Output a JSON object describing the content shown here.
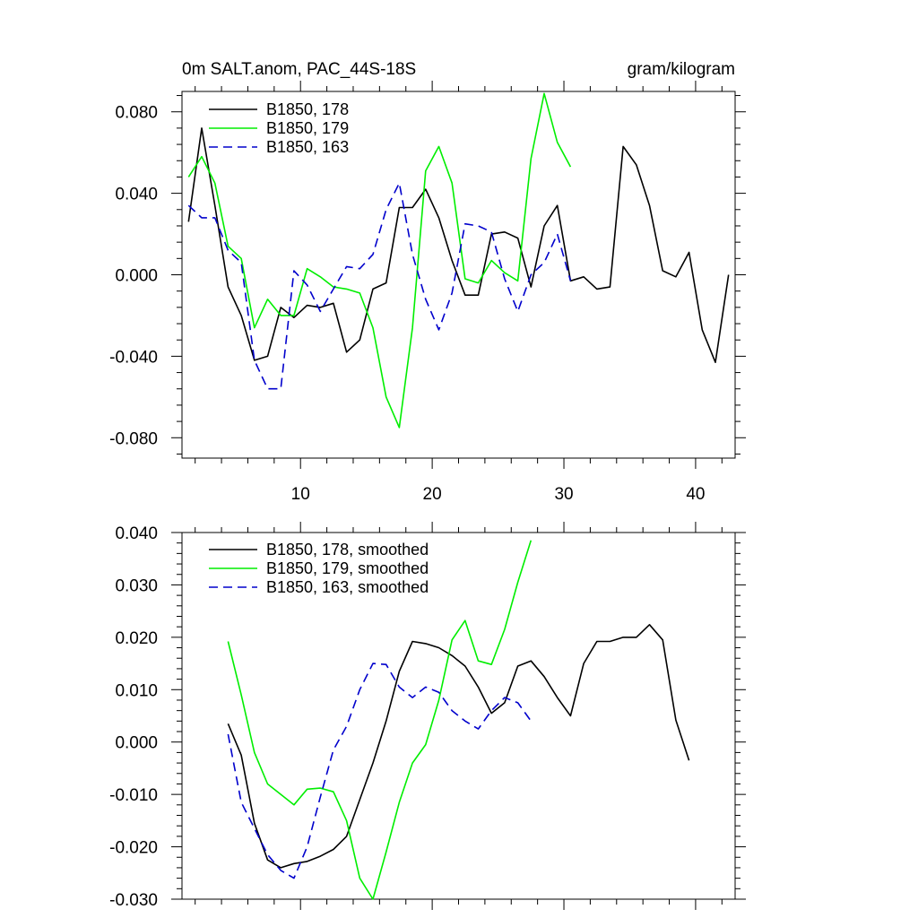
{
  "chart_data": [
    {
      "type": "line",
      "title_left": "0m SALT.anom, PAC_44S-18S",
      "title_right": "gram/kilogram",
      "xlim": [
        1.0,
        43.0
      ],
      "ylim": [
        -0.09,
        0.09
      ],
      "yticks": [
        -0.08,
        -0.04,
        0.0,
        0.04,
        0.08
      ],
      "ytick_labels": [
        "-0.080",
        "-0.040",
        "0.000",
        "0.040",
        "0.080"
      ],
      "xticks": [
        10,
        20,
        30,
        40
      ],
      "xtick_labels": [
        "10",
        "20",
        "30",
        "40"
      ],
      "legend_position": "top-left",
      "series": [
        {
          "name": "B1850, 178",
          "color": "#000000",
          "dash": "solid",
          "x": [
            1.5,
            2.5,
            3.5,
            4.5,
            5.5,
            6.5,
            7.5,
            8.5,
            9.5,
            10.5,
            11.5,
            12.5,
            13.5,
            14.5,
            15.5,
            16.5,
            17.5,
            18.5,
            19.5,
            20.5,
            21.5,
            22.5,
            23.5,
            24.5,
            25.5,
            26.5,
            27.5,
            28.5,
            29.5,
            30.5,
            31.5,
            32.5,
            33.5,
            34.5,
            35.5,
            36.5,
            37.5,
            38.5,
            39.5,
            40.5,
            41.5,
            42.5
          ],
          "values": [
            0.026,
            0.072,
            0.034,
            -0.006,
            -0.02,
            -0.042,
            -0.04,
            -0.016,
            -0.021,
            -0.015,
            -0.016,
            -0.014,
            -0.038,
            -0.032,
            -0.007,
            -0.004,
            0.033,
            0.033,
            0.042,
            0.028,
            0.007,
            -0.01,
            -0.01,
            0.02,
            0.021,
            0.018,
            -0.006,
            0.024,
            0.034,
            -0.003,
            -0.001,
            -0.007,
            -0.006,
            0.063,
            0.054,
            0.034,
            0.002,
            -0.001,
            0.011,
            -0.027,
            -0.043,
            0.0
          ]
        },
        {
          "name": "B1850, 179",
          "color": "#00ee00",
          "dash": "solid",
          "x": [
            1.5,
            2.5,
            3.5,
            4.5,
            5.5,
            6.5,
            7.5,
            8.5,
            9.5,
            10.5,
            11.5,
            12.5,
            13.5,
            14.5,
            15.5,
            16.5,
            17.5,
            18.5,
            19.5,
            20.5,
            21.5,
            22.5,
            23.5,
            24.5,
            25.5,
            26.5,
            27.5,
            28.5,
            29.5,
            30.5
          ],
          "values": [
            0.048,
            0.058,
            0.045,
            0.014,
            0.008,
            -0.026,
            -0.012,
            -0.02,
            -0.02,
            0.003,
            -0.001,
            -0.006,
            -0.007,
            -0.009,
            -0.026,
            -0.06,
            -0.075,
            -0.026,
            0.051,
            0.063,
            0.045,
            -0.002,
            -0.004,
            0.007,
            0.001,
            -0.003,
            0.057,
            0.089,
            0.065,
            0.053
          ]
        },
        {
          "name": "B1850, 163",
          "color": "#0000cc",
          "dash": "dashed",
          "x": [
            1.5,
            2.5,
            3.5,
            4.5,
            5.5,
            6.5,
            7.5,
            8.5,
            9.5,
            10.5,
            11.5,
            12.5,
            13.5,
            14.5,
            15.5,
            16.5,
            17.5,
            18.5,
            19.5,
            20.5,
            21.5,
            22.5,
            23.5,
            24.5,
            25.5,
            26.5,
            27.5,
            28.5,
            29.5,
            30.5
          ],
          "values": [
            0.034,
            0.028,
            0.028,
            0.012,
            0.006,
            -0.042,
            -0.056,
            -0.056,
            0.002,
            -0.005,
            -0.018,
            -0.007,
            0.004,
            0.003,
            0.01,
            0.032,
            0.045,
            0.01,
            -0.012,
            -0.027,
            -0.009,
            0.025,
            0.024,
            0.021,
            -0.002,
            -0.018,
            0.0,
            0.006,
            0.02,
            -0.003
          ]
        }
      ]
    },
    {
      "type": "line",
      "xlim": [
        1.0,
        43.0
      ],
      "ylim": [
        -0.03,
        0.04
      ],
      "yticks": [
        -0.03,
        -0.02,
        -0.01,
        0.0,
        0.01,
        0.02,
        0.03,
        0.04
      ],
      "ytick_labels": [
        "-0.030",
        "-0.020",
        "-0.010",
        "0.000",
        "0.010",
        "0.020",
        "0.030",
        "0.040"
      ],
      "xticks": [
        10,
        20,
        30,
        40
      ],
      "legend_position": "top-left",
      "series": [
        {
          "name": "B1850, 178, smoothed",
          "color": "#000000",
          "dash": "solid",
          "x": [
            4.5,
            5.5,
            6.5,
            7.5,
            8.5,
            9.5,
            10.5,
            11.5,
            12.5,
            13.5,
            14.5,
            15.5,
            16.5,
            17.5,
            18.5,
            19.5,
            20.5,
            21.5,
            22.5,
            23.5,
            24.5,
            25.5,
            26.5,
            27.5,
            28.5,
            29.5,
            30.5,
            31.5,
            32.5,
            33.5,
            34.5,
            35.5,
            36.5,
            37.5,
            38.5,
            39.5
          ],
          "values": [
            0.0035,
            -0.0025,
            -0.0155,
            -0.0225,
            -0.024,
            -0.0232,
            -0.0228,
            -0.0218,
            -0.0205,
            -0.018,
            -0.011,
            -0.004,
            0.004,
            0.0135,
            0.0192,
            0.0188,
            0.018,
            0.0165,
            0.0145,
            0.0105,
            0.0055,
            0.0075,
            0.0145,
            0.0155,
            0.0125,
            0.0085,
            0.005,
            0.015,
            0.0192,
            0.0192,
            0.02,
            0.02,
            0.0224,
            0.0195,
            0.0042,
            -0.0035
          ]
        },
        {
          "name": "B1850, 179, smoothed",
          "color": "#00ee00",
          "dash": "solid",
          "x": [
            4.5,
            5.5,
            6.5,
            7.5,
            8.5,
            9.5,
            10.5,
            11.5,
            12.5,
            13.5,
            14.5,
            15.5,
            16.5,
            17.5,
            18.5,
            19.5,
            20.5,
            21.5,
            22.5,
            23.5,
            24.5,
            25.5,
            26.5,
            27.5
          ],
          "values": [
            0.0192,
            0.009,
            -0.002,
            -0.008,
            -0.01,
            -0.012,
            -0.009,
            -0.0088,
            -0.0095,
            -0.015,
            -0.026,
            -0.03,
            -0.021,
            -0.0115,
            -0.004,
            -0.0005,
            0.008,
            0.0195,
            0.0232,
            0.0155,
            0.0148,
            0.0215,
            0.0305,
            0.0385
          ]
        },
        {
          "name": "B1850, 163, smoothed",
          "color": "#0000cc",
          "dash": "dashed",
          "x": [
            4.5,
            5.5,
            6.5,
            7.5,
            8.5,
            9.5,
            10.5,
            11.5,
            12.5,
            13.5,
            14.5,
            15.5,
            16.5,
            17.5,
            18.5,
            19.5,
            20.5,
            21.5,
            22.5,
            23.5,
            24.5,
            25.5,
            26.5,
            27.5
          ],
          "values": [
            0.0015,
            -0.0115,
            -0.0165,
            -0.0215,
            -0.0245,
            -0.026,
            -0.02,
            -0.0105,
            -0.0015,
            0.003,
            0.01,
            0.015,
            0.0148,
            0.0105,
            0.0085,
            0.0105,
            0.0095,
            0.006,
            0.004,
            0.0025,
            0.006,
            0.0085,
            0.0075,
            0.004
          ]
        }
      ]
    }
  ]
}
